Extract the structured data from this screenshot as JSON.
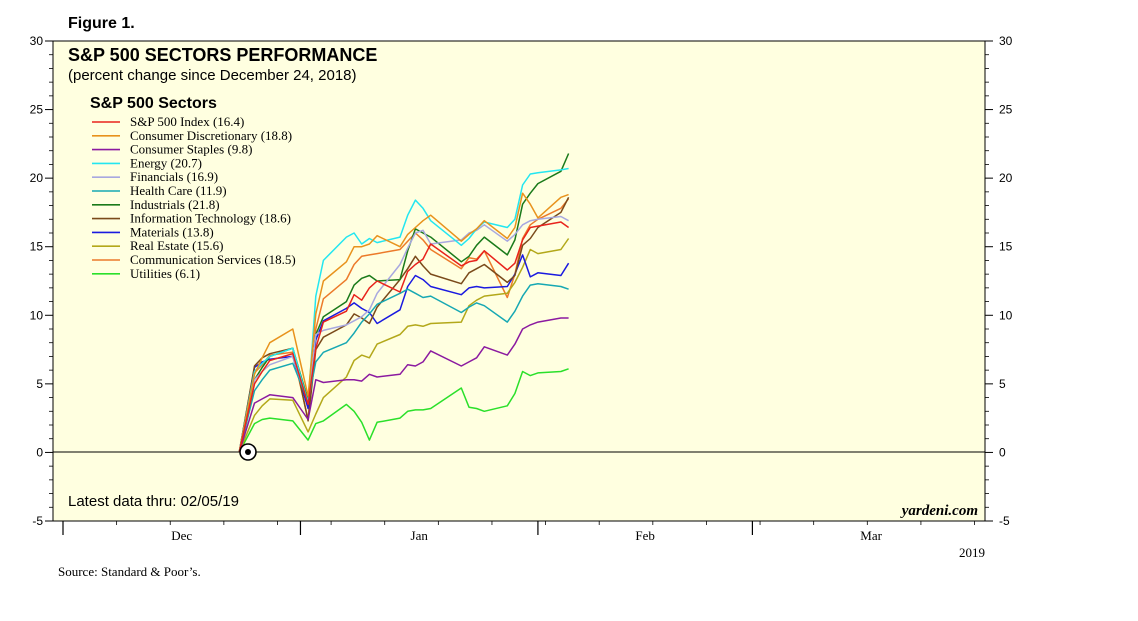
{
  "figure_label": "Figure 1.",
  "source_note": "Source: Standard & Poor’s.",
  "watermark": "yardeni.com",
  "latest_note": "Latest data thru: 02/05/19",
  "year_label": "2019",
  "colors": {
    "panel_bg": "#ffffe0",
    "border": "#000000"
  },
  "chart_data": {
    "type": "line",
    "title": "S&P 500 SECTORS PERFORMANCE",
    "subtitle": "(percent change since December 24, 2018)",
    "legend_title": "S&P 500 Sectors",
    "legend_position": "top-left",
    "ylim": [
      -5,
      30
    ],
    "yticks": [
      -5,
      0,
      5,
      10,
      15,
      20,
      25,
      30
    ],
    "grid": false,
    "x_start": "2018-12-24",
    "x_end": "2019-02-05",
    "x_axis_labels": [
      "Dec",
      "Jan",
      "Feb",
      "Mar"
    ],
    "x": [
      "2018-12-24",
      "2018-12-26",
      "2018-12-27",
      "2018-12-28",
      "2018-12-31",
      "2019-01-02",
      "2019-01-03",
      "2019-01-04",
      "2019-01-07",
      "2019-01-08",
      "2019-01-09",
      "2019-01-10",
      "2019-01-11",
      "2019-01-14",
      "2019-01-15",
      "2019-01-16",
      "2019-01-17",
      "2019-01-18",
      "2019-01-22",
      "2019-01-23",
      "2019-01-24",
      "2019-01-25",
      "2019-01-28",
      "2019-01-29",
      "2019-01-30",
      "2019-01-31",
      "2019-02-01",
      "2019-02-04",
      "2019-02-05"
    ],
    "series": [
      {
        "name": "S&P 500 Index (16.4)",
        "color": "#e8231c",
        "values": [
          0,
          5.0,
          5.9,
          6.7,
          7.2,
          3.5,
          7.6,
          9.5,
          10.3,
          11.5,
          11.1,
          12.0,
          12.5,
          11.7,
          13.2,
          13.7,
          14.1,
          15.2,
          13.6,
          13.9,
          14.0,
          14.7,
          13.3,
          13.8,
          15.5,
          16.4,
          16.5,
          16.8,
          16.4
        ]
      },
      {
        "name": "Consumer Discretionary (18.8)",
        "color": "#e8921c",
        "values": [
          0,
          5.7,
          6.9,
          8.0,
          9.0,
          4.1,
          10.1,
          12.5,
          13.9,
          15.0,
          15.0,
          15.2,
          15.8,
          15.0,
          15.9,
          16.4,
          16.9,
          17.3,
          15.4,
          15.9,
          16.3,
          16.9,
          15.6,
          16.4,
          18.9,
          18.1,
          17.1,
          18.6,
          18.8
        ]
      },
      {
        "name": "Consumer Staples (9.8)",
        "color": "#8b1aa0",
        "values": [
          0,
          3.6,
          3.9,
          4.2,
          4.0,
          2.4,
          5.3,
          5.1,
          5.3,
          5.3,
          5.2,
          5.7,
          5.5,
          5.7,
          6.4,
          6.3,
          6.6,
          7.4,
          6.3,
          6.6,
          6.9,
          7.7,
          7.1,
          7.9,
          9.0,
          9.3,
          9.5,
          9.8,
          9.8
        ]
      },
      {
        "name": "Energy (20.7)",
        "color": "#23e6f0",
        "values": [
          0,
          5.9,
          6.5,
          7.0,
          7.6,
          3.6,
          11.4,
          14.0,
          15.7,
          16.0,
          15.2,
          15.6,
          15.3,
          15.7,
          17.3,
          18.4,
          17.8,
          16.9,
          15.1,
          15.6,
          16.3,
          16.8,
          16.4,
          17.0,
          19.5,
          20.3,
          20.4,
          20.6,
          20.7
        ]
      },
      {
        "name": "Financials (16.9)",
        "color": "#a8a8e0",
        "values": [
          0,
          5.3,
          5.9,
          6.4,
          7.0,
          3.6,
          8.6,
          8.9,
          9.3,
          9.6,
          9.9,
          10.4,
          11.6,
          13.7,
          14.9,
          16.0,
          16.2,
          15.2,
          15.5,
          16.0,
          16.2,
          16.6,
          15.4,
          15.9,
          16.6,
          16.9,
          17.0,
          17.2,
          16.9
        ]
      },
      {
        "name": "Health Care (11.9)",
        "color": "#17a8b3",
        "values": [
          0,
          4.5,
          5.3,
          6.0,
          6.5,
          3.7,
          6.6,
          7.3,
          8.0,
          8.7,
          9.5,
          10.1,
          10.8,
          11.6,
          11.9,
          11.6,
          11.3,
          11.4,
          10.2,
          10.6,
          10.9,
          10.7,
          9.5,
          10.3,
          11.4,
          12.2,
          12.3,
          12.1,
          11.9
        ]
      },
      {
        "name": "Industrials (21.8)",
        "color": "#1a7a1a",
        "values": [
          0,
          5.3,
          6.2,
          7.0,
          7.6,
          3.8,
          8.6,
          9.9,
          11.0,
          12.2,
          12.7,
          12.9,
          12.5,
          12.6,
          14.7,
          16.3,
          16.0,
          15.7,
          13.9,
          14.3,
          15.1,
          15.7,
          14.4,
          15.5,
          18.1,
          18.9,
          19.6,
          20.5,
          21.8
        ]
      },
      {
        "name": "Information Technology (18.6)",
        "color": "#7a4a1a",
        "values": [
          0,
          6.3,
          6.9,
          7.2,
          7.6,
          2.3,
          7.5,
          8.4,
          9.3,
          10.1,
          9.8,
          9.4,
          10.6,
          12.6,
          13.4,
          14.3,
          13.6,
          13.0,
          12.3,
          13.1,
          13.4,
          13.7,
          12.4,
          12.9,
          15.1,
          15.6,
          16.4,
          17.5,
          18.6
        ]
      },
      {
        "name": "Materials (13.8)",
        "color": "#1a1ae0",
        "values": [
          0,
          6.2,
          6.6,
          6.8,
          7.0,
          3.2,
          8.2,
          9.6,
          10.5,
          10.9,
          10.5,
          10.2,
          9.4,
          10.4,
          12.1,
          12.9,
          12.6,
          12.1,
          11.5,
          12.0,
          12.1,
          12.0,
          12.1,
          13.0,
          14.4,
          12.8,
          13.1,
          12.9,
          13.8
        ]
      },
      {
        "name": "Real Estate (15.6)",
        "color": "#b3a81a",
        "values": [
          0,
          2.7,
          3.4,
          3.9,
          3.8,
          1.5,
          2.8,
          4.0,
          5.5,
          6.7,
          7.1,
          6.9,
          7.9,
          8.6,
          9.2,
          9.3,
          9.2,
          9.4,
          9.5,
          10.7,
          11.1,
          11.4,
          11.6,
          12.4,
          13.5,
          14.8,
          14.5,
          14.8,
          15.6
        ]
      },
      {
        "name": "Communication Services (18.5)",
        "color": "#ec7a2a",
        "values": [
          0,
          5.8,
          6.4,
          7.1,
          7.3,
          2.4,
          9.0,
          11.2,
          12.6,
          13.7,
          14.3,
          14.4,
          14.5,
          14.8,
          15.4,
          16.0,
          15.5,
          14.8,
          13.4,
          14.2,
          14.1,
          14.7,
          11.3,
          13.0,
          15.6,
          16.6,
          17.0,
          17.8,
          18.5
        ]
      },
      {
        "name": "Utilities (6.1)",
        "color": "#2ae02a",
        "values": [
          0,
          2.1,
          2.4,
          2.5,
          2.3,
          0.9,
          2.1,
          2.3,
          3.5,
          3.0,
          2.2,
          0.9,
          2.2,
          2.5,
          3.0,
          3.1,
          3.1,
          3.2,
          4.7,
          3.3,
          3.2,
          3.0,
          3.4,
          4.3,
          5.9,
          5.6,
          5.8,
          5.9,
          6.1
        ]
      }
    ]
  }
}
